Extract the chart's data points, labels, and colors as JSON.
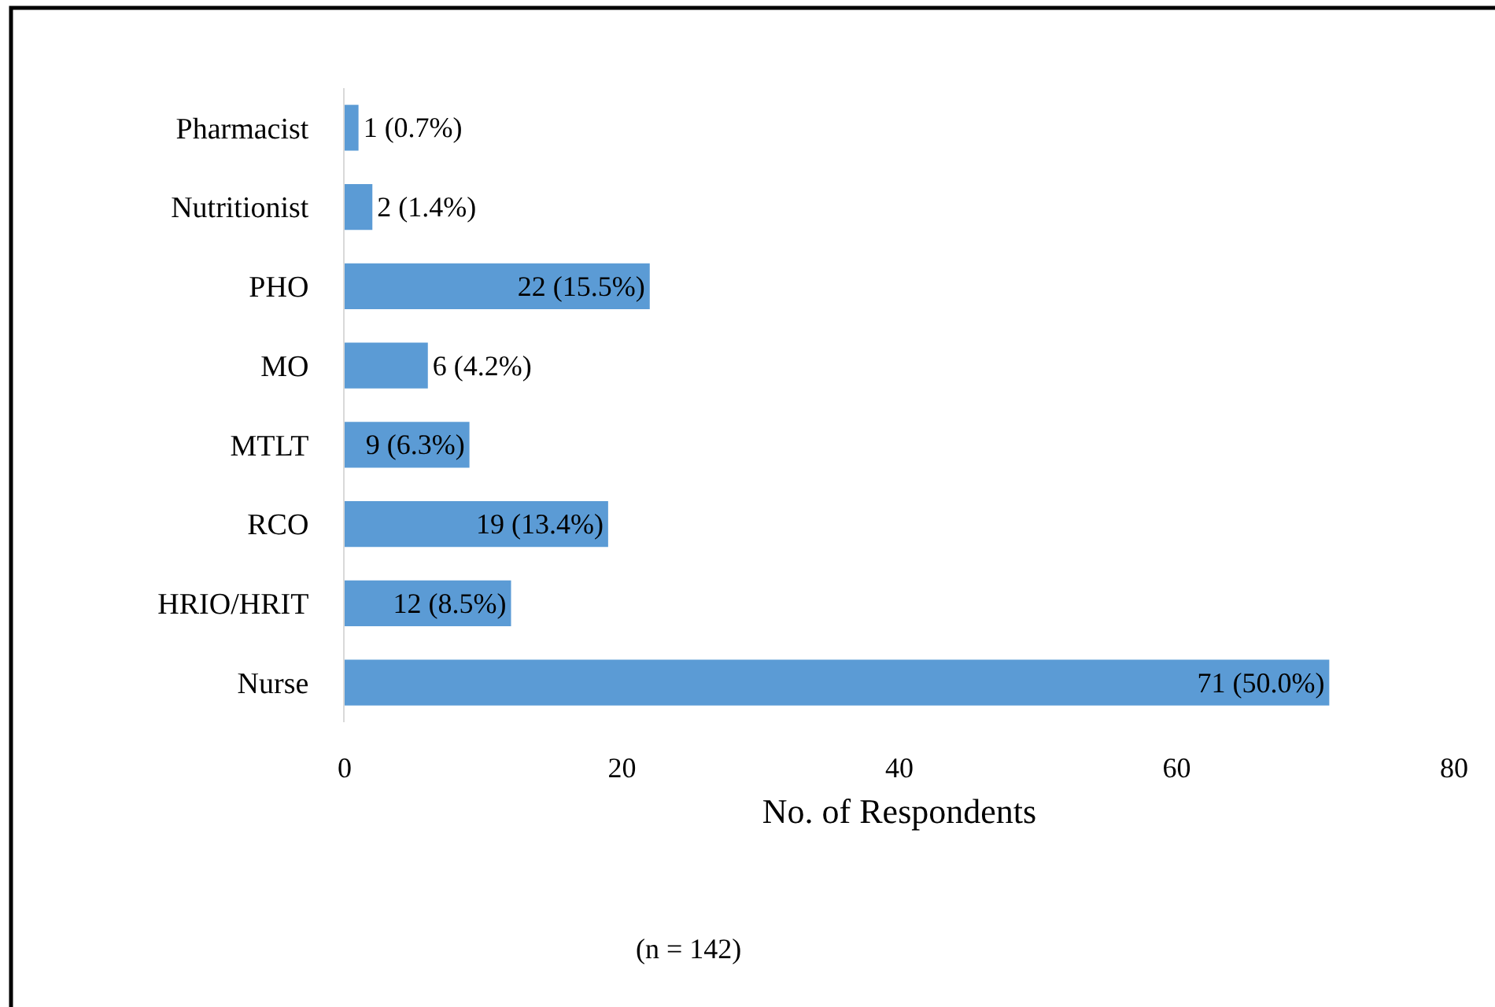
{
  "chart_data": {
    "type": "bar",
    "orientation": "horizontal",
    "categories": [
      "Pharmacist",
      "Nutritionist",
      "PHO",
      "MO",
      "MTLT",
      "RCO",
      "HRIO/HRIT",
      "Nurse"
    ],
    "values": [
      1,
      2,
      22,
      6,
      9,
      19,
      12,
      71
    ],
    "value_labels": [
      "1 (0.7%)",
      "2 (1.4%)",
      "22 (15.5%)",
      "6 (4.2%)",
      "9 (6.3%)",
      "19 (13.4%)",
      "12 (8.5%)",
      "71 (50.0%)"
    ],
    "color": "#5b9bd5",
    "xlabel": "No. of Respondents",
    "xlim": [
      0,
      80
    ],
    "xticks": [
      0,
      20,
      40,
      60,
      80
    ],
    "grid": false,
    "annotations": [
      "(n = 142)"
    ]
  }
}
